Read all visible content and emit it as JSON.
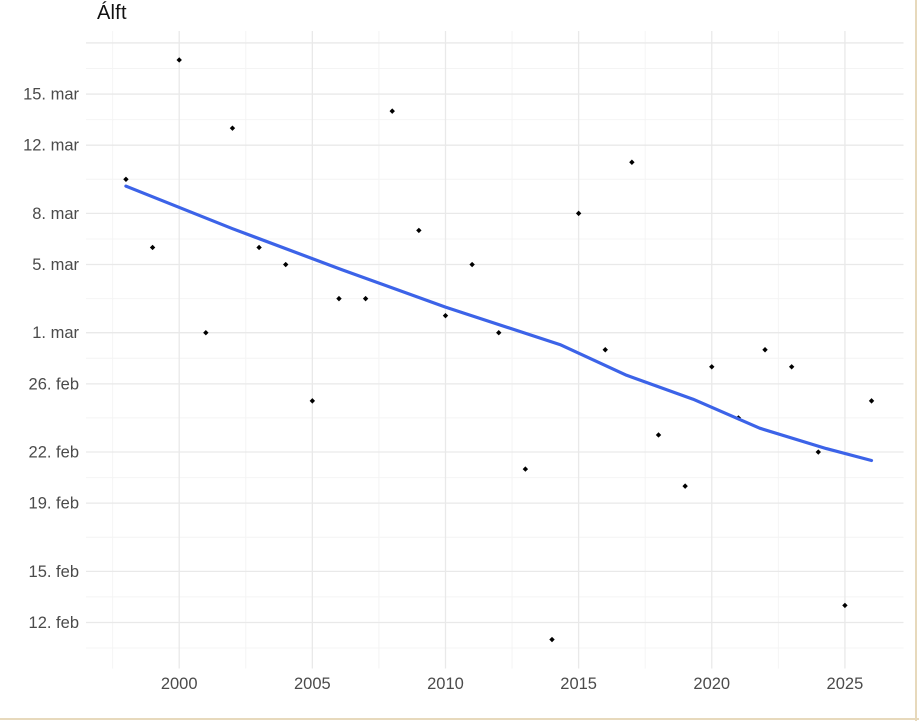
{
  "window": {
    "background": "#ffffff",
    "border_color": "#e7d9bc"
  },
  "style": {
    "point_color": "#000000",
    "trend_color": "#3c63e8",
    "grid_major_color": "#e9e9e9",
    "grid_minor_color": "#f4f4f4",
    "axis_text_color": "#4b4b4b",
    "title_color": "#111111"
  },
  "chart_data": {
    "type": "scatter",
    "title": "Álft",
    "xlabel": "",
    "ylabel": "",
    "grid": "on",
    "legend": "none",
    "x_axis": {
      "major_ticks": [
        2000,
        2005,
        2010,
        2015,
        2020,
        2025
      ],
      "minor_ticks": [
        1997.5,
        2002.5,
        2007.5,
        2012.5,
        2017.5,
        2022.5
      ],
      "range": [
        1996.5,
        2027.2
      ]
    },
    "y_axis": {
      "tick_labels": [
        "15. mar",
        "12. mar",
        "8. mar",
        "5. mar",
        "1. mar",
        "26. feb",
        "22. feb",
        "19. feb",
        "15. feb",
        "12. feb"
      ],
      "tick_day_offsets": [
        31,
        28,
        24,
        21,
        17,
        14,
        10,
        7,
        3,
        0
      ],
      "unlabeled_major_day_offsets": [
        34
      ],
      "minor_day_offsets": [
        32.5,
        29.5,
        26,
        22.5,
        19,
        15.5,
        12,
        8.5,
        5,
        1.5,
        -1.5
      ],
      "day_offset_reference": "12. feb",
      "range_day_offsets": [
        -2.7,
        34.7
      ]
    },
    "series": [
      {
        "name": "Álft",
        "points": [
          {
            "year": 1998,
            "date": "10. mar",
            "day_offset": 26
          },
          {
            "year": 1999,
            "date": "6. mar",
            "day_offset": 22
          },
          {
            "year": 2000,
            "date": "17. mar",
            "day_offset": 33
          },
          {
            "year": 2001,
            "date": "1. mar",
            "day_offset": 17
          },
          {
            "year": 2002,
            "date": "13. mar",
            "day_offset": 29
          },
          {
            "year": 2003,
            "date": "6. mar",
            "day_offset": 22
          },
          {
            "year": 2004,
            "date": "5. mar",
            "day_offset": 21
          },
          {
            "year": 2005,
            "date": "25. feb",
            "day_offset": 13
          },
          {
            "year": 2006,
            "date": "3. mar",
            "day_offset": 19
          },
          {
            "year": 2007,
            "date": "3. mar",
            "day_offset": 19
          },
          {
            "year": 2008,
            "date": "14. mar",
            "day_offset": 30
          },
          {
            "year": 2009,
            "date": "7. mar",
            "day_offset": 23
          },
          {
            "year": 2010,
            "date": "2. mar",
            "day_offset": 18
          },
          {
            "year": 2011,
            "date": "5. mar",
            "day_offset": 21
          },
          {
            "year": 2012,
            "date": "1. mar",
            "day_offset": 17
          },
          {
            "year": 2013,
            "date": "21. feb",
            "day_offset": 9
          },
          {
            "year": 2014,
            "date": "11. feb",
            "day_offset": -1
          },
          {
            "year": 2015,
            "date": "8. mar",
            "day_offset": 24
          },
          {
            "year": 2016,
            "date": "28. feb",
            "day_offset": 16
          },
          {
            "year": 2017,
            "date": "11. mar",
            "day_offset": 27
          },
          {
            "year": 2018,
            "date": "23. feb",
            "day_offset": 11
          },
          {
            "year": 2019,
            "date": "20. feb",
            "day_offset": 8
          },
          {
            "year": 2020,
            "date": "27. feb",
            "day_offset": 15
          },
          {
            "year": 2021,
            "date": "24. feb",
            "day_offset": 12
          },
          {
            "year": 2022,
            "date": "28. feb",
            "day_offset": 16
          },
          {
            "year": 2023,
            "date": "27. feb",
            "day_offset": 15
          },
          {
            "year": 2024,
            "date": "22. feb",
            "day_offset": 10
          },
          {
            "year": 2025,
            "date": "13. feb",
            "day_offset": 1
          },
          {
            "year": 2026,
            "date": "25. feb",
            "day_offset": 13
          }
        ]
      }
    ],
    "trend_line": {
      "type": "smooth",
      "points": [
        {
          "year": 1998.0,
          "day_offset": 25.6
        },
        {
          "year": 2002.0,
          "day_offset": 23.1
        },
        {
          "year": 2006.1,
          "day_offset": 20.7
        },
        {
          "year": 2010.0,
          "day_offset": 18.5
        },
        {
          "year": 2014.3,
          "day_offset": 16.3
        },
        {
          "year": 2016.8,
          "day_offset": 14.5
        },
        {
          "year": 2019.3,
          "day_offset": 13.1
        },
        {
          "year": 2021.8,
          "day_offset": 11.4
        },
        {
          "year": 2024.3,
          "day_offset": 10.2
        },
        {
          "year": 2026.0,
          "day_offset": 9.5
        }
      ]
    }
  }
}
